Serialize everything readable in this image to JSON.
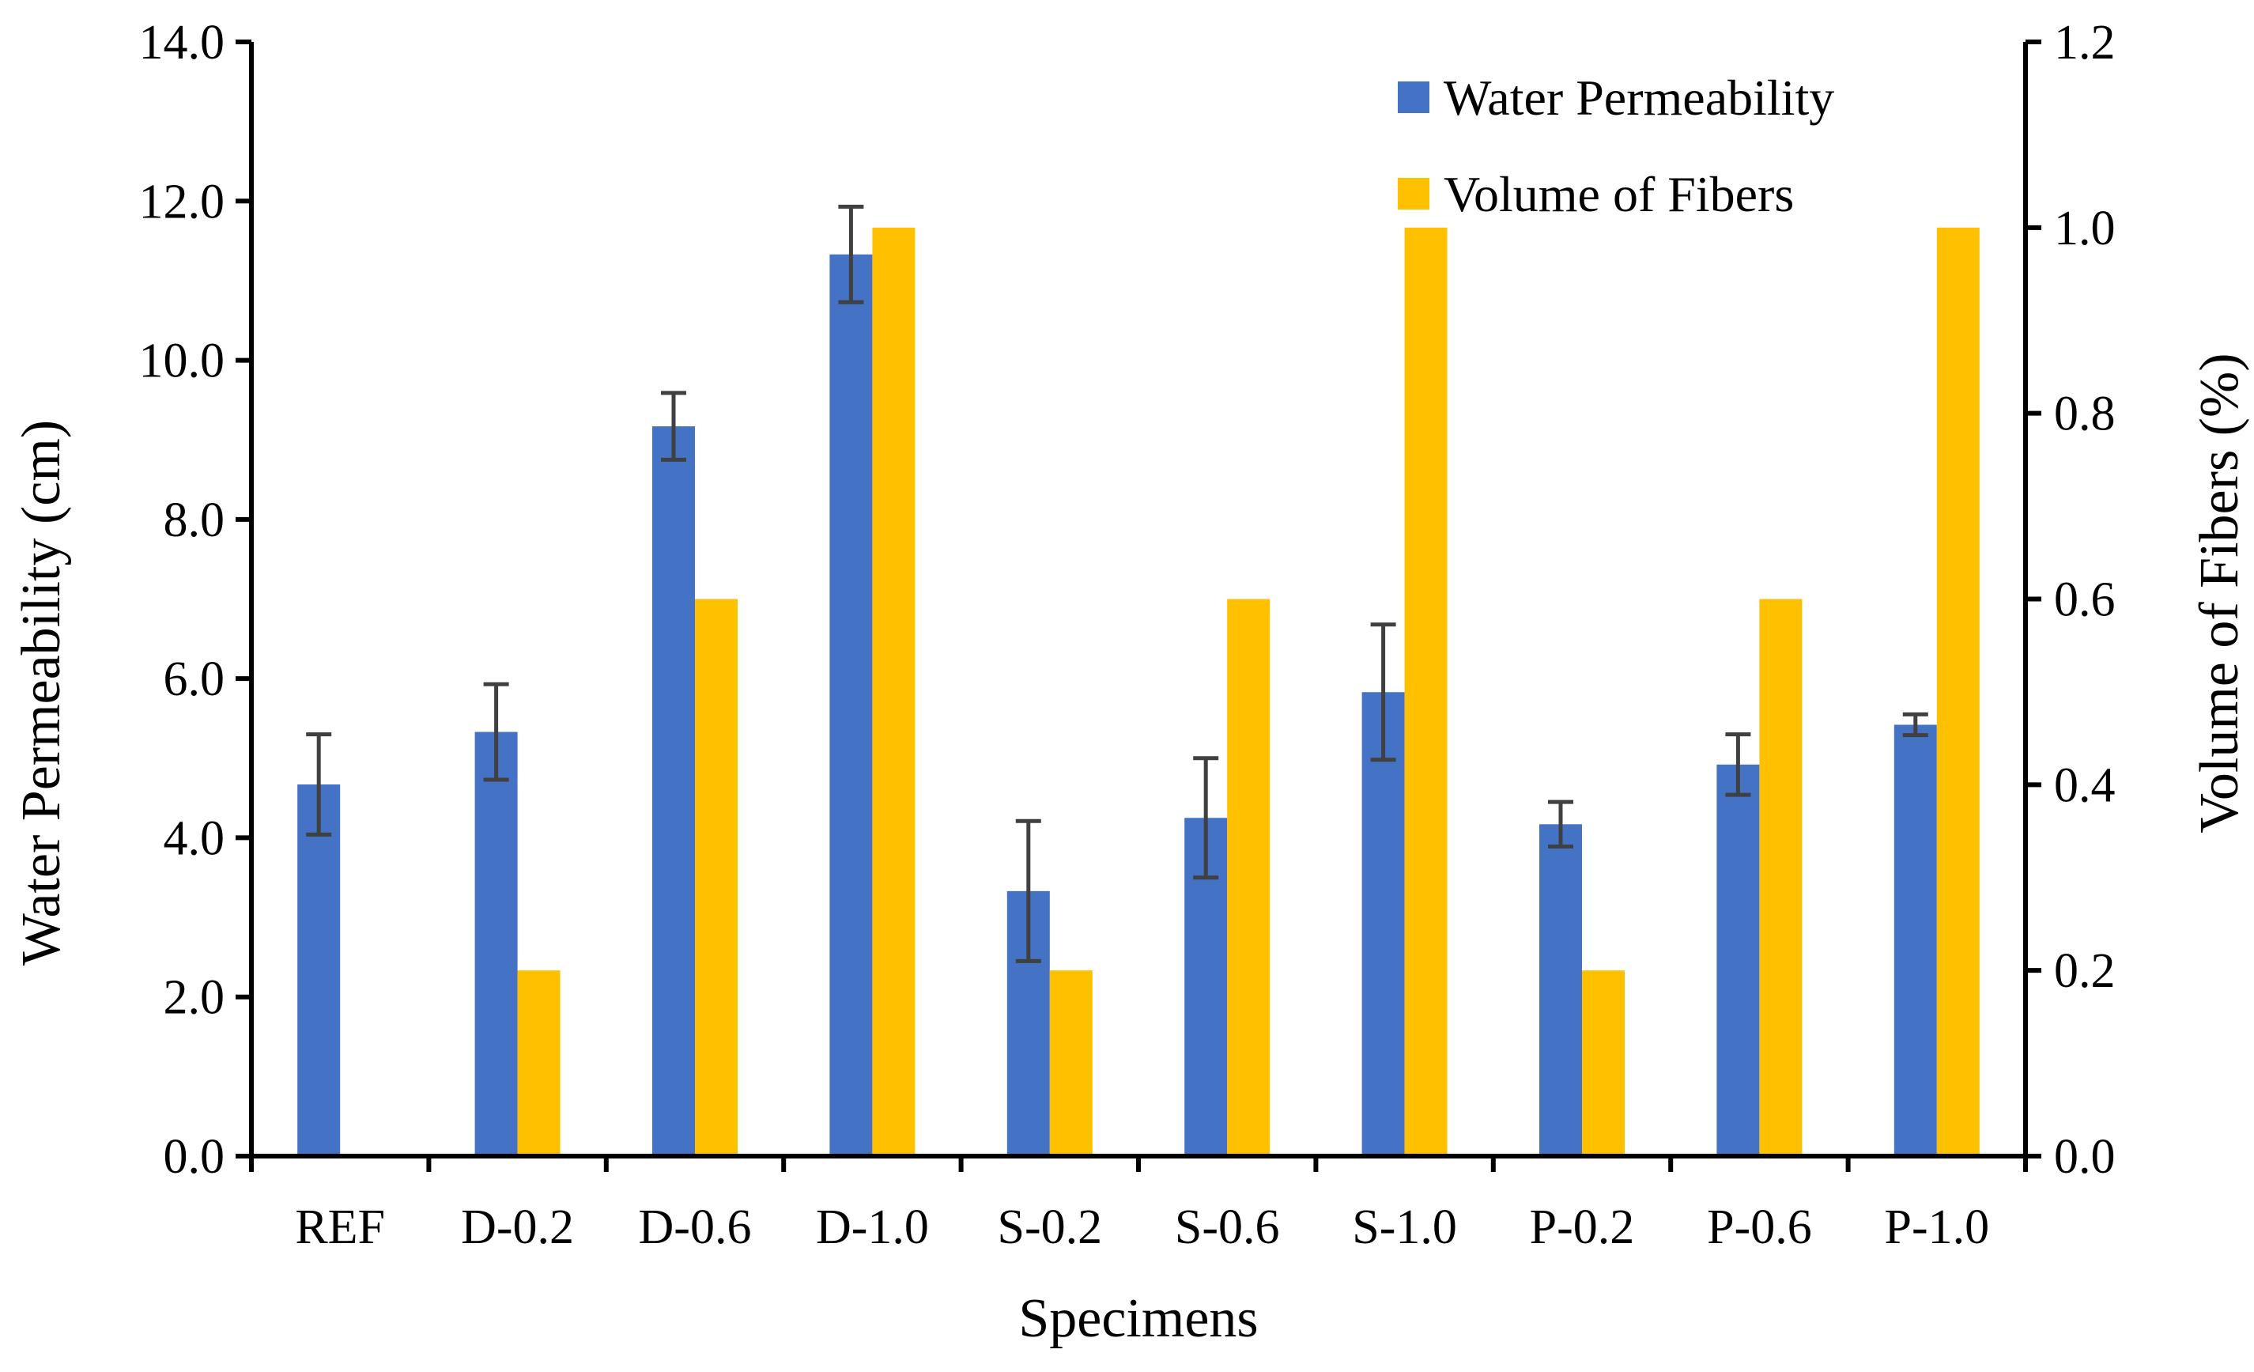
{
  "chart_data": {
    "type": "bar",
    "xlabel": "Specimens",
    "categories": [
      "REF",
      "D-0.2",
      "D-0.6",
      "D-1.0",
      "S-0.2",
      "S-0.6",
      "S-1.0",
      "P-0.2",
      "P-0.6",
      "P-1.0"
    ],
    "y_left": {
      "label": "Water Permeability (cm)",
      "ylim": [
        0,
        14
      ],
      "ticks": [
        "0.0",
        "2.0",
        "4.0",
        "6.0",
        "8.0",
        "10.0",
        "12.0",
        "14.0"
      ]
    },
    "y_right": {
      "label": "Volume of Fibers (%)",
      "ylim": [
        0,
        1.2
      ],
      "ticks": [
        "0.0",
        "0.2",
        "0.4",
        "0.6",
        "0.8",
        "1.0",
        "1.2"
      ]
    },
    "series": [
      {
        "name": "Water Permeability",
        "axis": "left",
        "color": "#4472C4",
        "values": [
          4.67,
          5.33,
          9.17,
          11.33,
          3.33,
          4.25,
          5.83,
          4.17,
          4.92,
          5.42
        ],
        "errors": [
          0.63,
          0.6,
          0.42,
          0.6,
          0.88,
          0.75,
          0.85,
          0.28,
          0.38,
          0.13
        ]
      },
      {
        "name": "Volume of Fibers",
        "axis": "right",
        "color": "#FFC000",
        "values": [
          0,
          0.2,
          0.6,
          1.0,
          0.2,
          0.6,
          1.0,
          0.2,
          0.6,
          1.0
        ]
      }
    ],
    "legend": "top-right",
    "grid": false
  }
}
